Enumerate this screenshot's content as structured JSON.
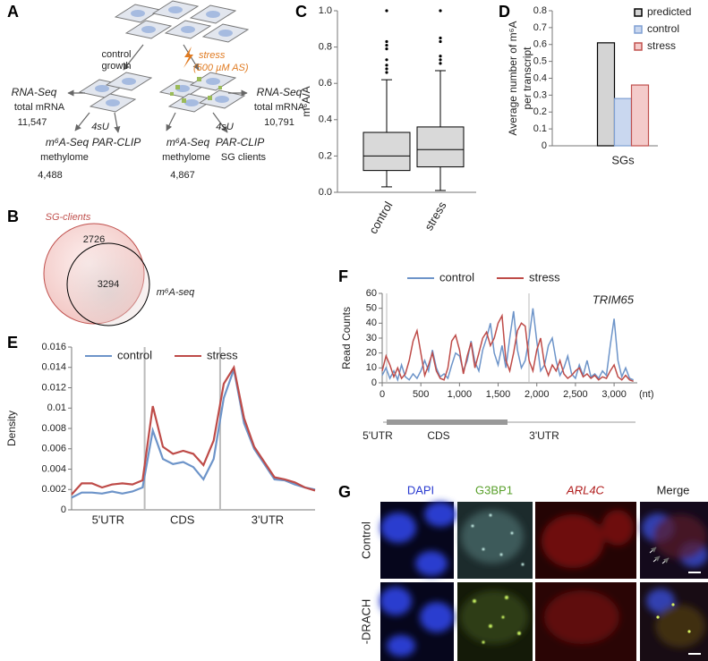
{
  "panel_labels": [
    "A",
    "B",
    "C",
    "D",
    "E",
    "F",
    "G"
  ],
  "diagram_a": {
    "control_growth": [
      "control",
      "growth"
    ],
    "stress": [
      "stress",
      "(500 µM AS)"
    ],
    "left": {
      "rnaseq": "RNA-Seq",
      "total": "total mRNA",
      "count": "11,547",
      "sU": "4sU",
      "m6a": "m⁶A-Seq",
      "methylome": "methylome",
      "m6a_count": "4,488",
      "parclip": "PAR-CLIP"
    },
    "right": {
      "rnaseq": "RNA-Seq",
      "total": "total mRNA",
      "count": "10,791",
      "sU": "4sU",
      "m6a": "m⁶A-Seq",
      "methylome": "methylome",
      "m6a_count": "4,867",
      "parclip": "PAR-CLIP",
      "sg_clients": "SG clients"
    }
  },
  "venn_b": {
    "outer_label": "SG-clients",
    "outer_only": 2726,
    "overlap": 3294,
    "inner_label": "m⁶A-seq"
  },
  "chart_data": [
    {
      "type": "box",
      "ylabel": "m⁶A/A",
      "categories": [
        "control",
        "stress"
      ],
      "color": "#d9d9d9",
      "boxes": [
        {
          "whislo": 0.03,
          "q1": 0.12,
          "med": 0.2,
          "q3": 0.33,
          "whishi": 0.62,
          "fliers": [
            0.66,
            0.68,
            0.7,
            0.73,
            0.79,
            0.81,
            0.83,
            1.0
          ]
        },
        {
          "whislo": 0.01,
          "q1": 0.14,
          "med": 0.235,
          "q3": 0.36,
          "whishi": 0.67,
          "fliers": [
            0.71,
            0.73,
            0.75,
            0.83,
            0.85,
            1.0
          ]
        }
      ],
      "ylim": [
        0,
        1
      ],
      "yticks": [
        {
          "value": 0,
          "label": "0.0"
        },
        0.2,
        0.4,
        0.6,
        0.8,
        {
          "value": 1,
          "label": "1.0"
        }
      ],
      "grid": false
    },
    {
      "type": "bar",
      "ylabel": [
        "Average number of m⁶A",
        "per transcript"
      ],
      "categories": [
        "SGs"
      ],
      "series": [
        {
          "name": "predicted",
          "color": "#d4d4d4",
          "edgecolor": "#000000",
          "values": [
            0.61
          ]
        },
        {
          "name": "control",
          "color": "#c9d7ef",
          "edgecolor": "#7f9fd3",
          "values": [
            0.28
          ]
        },
        {
          "name": "stress",
          "color": "#f4cbca",
          "edgecolor": "#c0504d",
          "values": [
            0.36
          ]
        }
      ],
      "ylim": [
        0,
        0.8
      ],
      "yticks": [
        0,
        0.1,
        0.2,
        0.3,
        0.4,
        0.5,
        0.6,
        0.7,
        0.8
      ],
      "legend": "upper right",
      "grid": false
    },
    {
      "type": "line",
      "ylabel": "Density",
      "regions": [
        "5'UTR",
        "CDS",
        "3'UTR"
      ],
      "series": [
        {
          "name": "control",
          "color": "#6d94c9",
          "values": [
            0.0012,
            0.0017,
            0.0017,
            0.0016,
            0.0018,
            0.0016,
            0.0018,
            0.0022,
            0.0078,
            0.005,
            0.0045,
            0.0047,
            0.0042,
            0.003,
            0.005,
            0.011,
            0.0138,
            0.0085,
            0.006,
            0.0045,
            0.003,
            0.0029,
            0.0025,
            0.0022,
            0.002
          ]
        },
        {
          "name": "stress",
          "color": "#be4b48",
          "values": [
            0.0015,
            0.0026,
            0.0026,
            0.0022,
            0.0025,
            0.0026,
            0.0025,
            0.0029,
            0.0102,
            0.0062,
            0.0055,
            0.0058,
            0.0055,
            0.0044,
            0.0068,
            0.0124,
            0.014,
            0.009,
            0.0062,
            0.0047,
            0.0032,
            0.003,
            0.0027,
            0.0022,
            0.0019
          ]
        }
      ],
      "ylim": [
        0,
        0.016
      ],
      "yticks": [
        0,
        0.002,
        0.004,
        0.006,
        0.008,
        0.01,
        0.012,
        0.014,
        0.016
      ],
      "grid": false
    },
    {
      "type": "line",
      "title": "TRIM65",
      "ylabel": "Read Counts",
      "xunit": "(nt)",
      "regions": [
        "5'UTR",
        "CDS",
        "3'UTR"
      ],
      "x": [
        0,
        50,
        100,
        150,
        200,
        250,
        300,
        350,
        400,
        450,
        500,
        550,
        600,
        650,
        700,
        750,
        800,
        850,
        900,
        950,
        1000,
        1050,
        1100,
        1150,
        1200,
        1250,
        1300,
        1350,
        1400,
        1450,
        1500,
        1550,
        1600,
        1650,
        1700,
        1750,
        1800,
        1850,
        1900,
        1950,
        2000,
        2050,
        2100,
        2150,
        2200,
        2250,
        2300,
        2350,
        2400,
        2450,
        2500,
        2550,
        2600,
        2650,
        2700,
        2750,
        2800,
        2850,
        2900,
        2950,
        3000,
        3050,
        3100,
        3150,
        3200,
        3250
      ],
      "series": [
        {
          "name": "control",
          "color": "#6d94c9",
          "values": [
            5,
            10,
            3,
            8,
            2,
            12,
            4,
            2,
            6,
            3,
            8,
            15,
            8,
            22,
            10,
            4,
            6,
            3,
            12,
            20,
            18,
            8,
            15,
            28,
            14,
            8,
            22,
            30,
            40,
            20,
            12,
            25,
            10,
            30,
            48,
            22,
            10,
            15,
            30,
            50,
            28,
            8,
            12,
            25,
            30,
            15,
            5,
            10,
            18,
            6,
            3,
            12,
            5,
            15,
            4,
            6,
            3,
            8,
            5,
            25,
            43,
            15,
            4,
            10,
            3,
            2
          ]
        },
        {
          "name": "stress",
          "color": "#be4b48",
          "values": [
            8,
            18,
            12,
            4,
            10,
            3,
            6,
            15,
            28,
            35,
            20,
            5,
            12,
            20,
            8,
            3,
            2,
            10,
            28,
            32,
            22,
            6,
            18,
            27,
            10,
            20,
            30,
            34,
            25,
            30,
            40,
            45,
            15,
            8,
            20,
            35,
            40,
            38,
            15,
            8,
            22,
            30,
            12,
            5,
            12,
            8,
            15,
            6,
            3,
            5,
            8,
            10,
            4,
            6,
            3,
            5,
            2,
            4,
            3,
            8,
            12,
            4,
            2,
            5,
            2,
            1
          ]
        }
      ],
      "xlim": [
        0,
        3300
      ],
      "xticks": [
        0,
        500,
        {
          "value": 1000,
          "label": "1,000"
        },
        {
          "value": 1500,
          "label": "1,500"
        },
        {
          "value": 2000,
          "label": "2,000"
        },
        {
          "value": 2500,
          "label": "2,500"
        },
        {
          "value": 3000,
          "label": "3,000"
        }
      ],
      "ylim": [
        0,
        60
      ],
      "yticks": [
        0,
        10,
        20,
        30,
        40,
        50,
        60
      ],
      "grid": false
    }
  ],
  "micrographs_g": {
    "columns": [
      "DAPI",
      "G3BP1",
      "ARL4C",
      "Merge"
    ],
    "rows": [
      "Control",
      "-DRACH"
    ]
  }
}
